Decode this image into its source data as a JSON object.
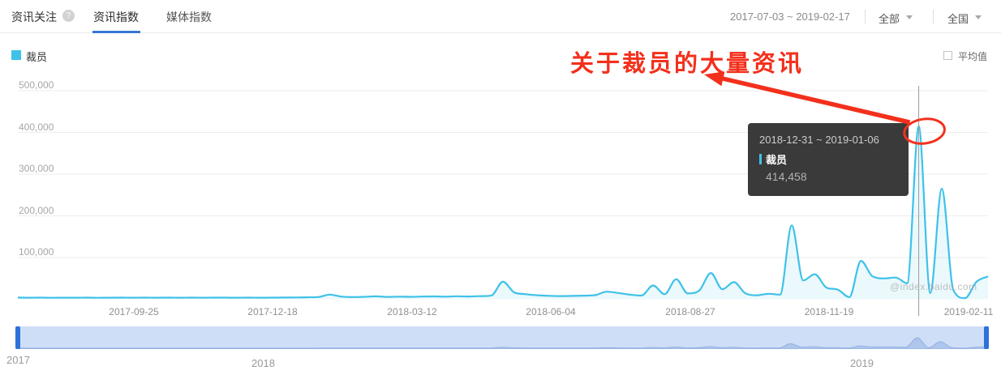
{
  "header": {
    "title": "资讯关注",
    "help_icon": "?",
    "tabs": [
      {
        "label": "资讯指数",
        "active": true
      },
      {
        "label": "媒体指数",
        "active": false
      }
    ],
    "date_range": "2017-07-03 ~ 2019-02-17",
    "filters": [
      {
        "label": "全部"
      },
      {
        "label": "全国"
      }
    ]
  },
  "legend": {
    "keyword": "裁员",
    "color": "#3FC1E8",
    "average_label": "平均值",
    "average_checked": false
  },
  "annotation": {
    "text": "关于裁员的大量资讯",
    "color": "#F3301C"
  },
  "tooltip": {
    "date_range": "2018-12-31 ~ 2019-01-06",
    "series": "裁员",
    "value": "414,458"
  },
  "watermark": "@index.baidu.com",
  "slider": {
    "years": [
      "2017",
      "2018",
      "2019"
    ]
  },
  "chart_data": {
    "type": "line",
    "series_name": "裁员",
    "x_start": "2017-07-03",
    "x_interval": "weekly",
    "x_tick_labels": [
      "2017-09-25",
      "2017-12-18",
      "2018-03-12",
      "2018-06-04",
      "2018-08-27",
      "2018-11-19",
      "2019-02-11"
    ],
    "y_ticks": [
      "500,000",
      "400,000",
      "300,000",
      "200,000",
      "100,000"
    ],
    "ylim": [
      0,
      500000
    ],
    "grid": true,
    "legend_position": "top-left",
    "line_color": "#3FC1E8",
    "fill_color": "rgba(63,193,232,0.10)",
    "values": [
      4000,
      3600,
      3800,
      3500,
      3700,
      3600,
      3800,
      3500,
      3700,
      3900,
      3600,
      3800,
      3700,
      3900,
      3600,
      3800,
      3700,
      3900,
      3800,
      3600,
      3900,
      3700,
      3800,
      4000,
      4200,
      4600,
      5200,
      11000,
      6500,
      5200,
      5800,
      7000,
      5600,
      6200,
      5800,
      6400,
      6800,
      6200,
      7200,
      6600,
      7400,
      9000,
      42000,
      16000,
      12000,
      9500,
      8200,
      7600,
      8000,
      8600,
      10000,
      18000,
      15000,
      11000,
      9000,
      33000,
      12000,
      48000,
      14000,
      21000,
      63000,
      24000,
      41000,
      14000,
      9500,
      13000,
      11000,
      177000,
      45000,
      60000,
      28000,
      23000,
      5000,
      92000,
      55000,
      50000,
      52000,
      38000,
      414458,
      15000,
      265000,
      22000,
      2500,
      42000,
      55000
    ],
    "highlight": {
      "index": 78,
      "date_range": "2018-12-31 ~ 2019-01-06",
      "value": 414458
    }
  }
}
